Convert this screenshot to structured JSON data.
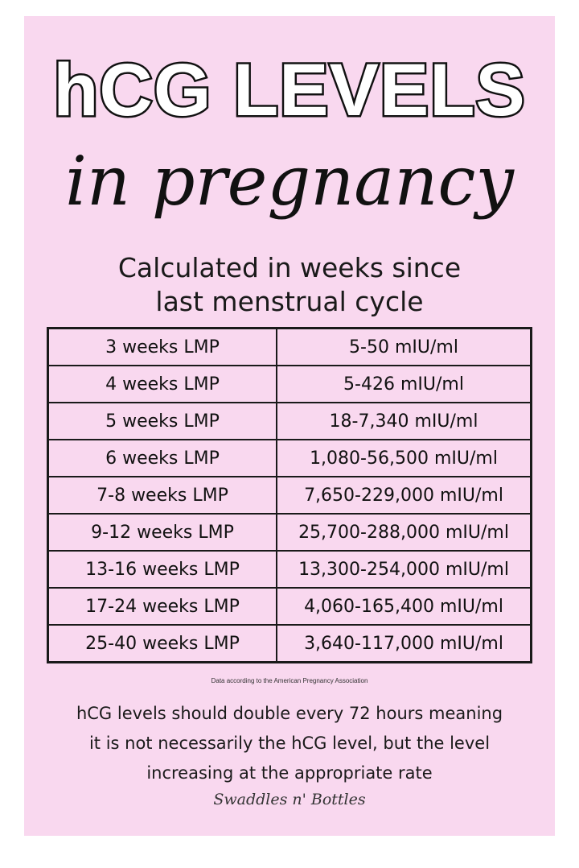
{
  "header": {
    "title": "hCG LEVELS",
    "script_title": "in pregnancy",
    "subtitle_line1": "Calculated in weeks since",
    "subtitle_line2": "last menstrual cycle"
  },
  "table": {
    "rows": [
      {
        "weeks": "3 weeks LMP",
        "level": "5-50 mIU/ml"
      },
      {
        "weeks": "4 weeks LMP",
        "level": "5-426 mIU/ml"
      },
      {
        "weeks": "5 weeks LMP",
        "level": "18-7,340 mIU/ml"
      },
      {
        "weeks": "6 weeks LMP",
        "level": "1,080-56,500 mIU/ml"
      },
      {
        "weeks": "7-8 weeks LMP",
        "level": "7,650-229,000 mIU/ml"
      },
      {
        "weeks": "9-12 weeks LMP",
        "level": "25,700-288,000 mIU/ml"
      },
      {
        "weeks": "13-16 weeks LMP",
        "level": "13,300-254,000 mIU/ml"
      },
      {
        "weeks": "17-24 weeks LMP",
        "level": "4,060-165,400 mIU/ml"
      },
      {
        "weeks": "25-40 weeks LMP",
        "level": "3,640-117,000 mIU/ml"
      }
    ]
  },
  "source_note": "Data according to the American Pregnancy Association",
  "footer": {
    "note_line1": "hCG levels should double every 72 hours meaning",
    "note_line2": "it is not necessarily the hCG level, but the level",
    "note_line3": "increasing at the appropriate rate",
    "brand": "Swaddles n' Bottles"
  },
  "colors": {
    "background": "#f9d8ef",
    "text": "#111111"
  }
}
